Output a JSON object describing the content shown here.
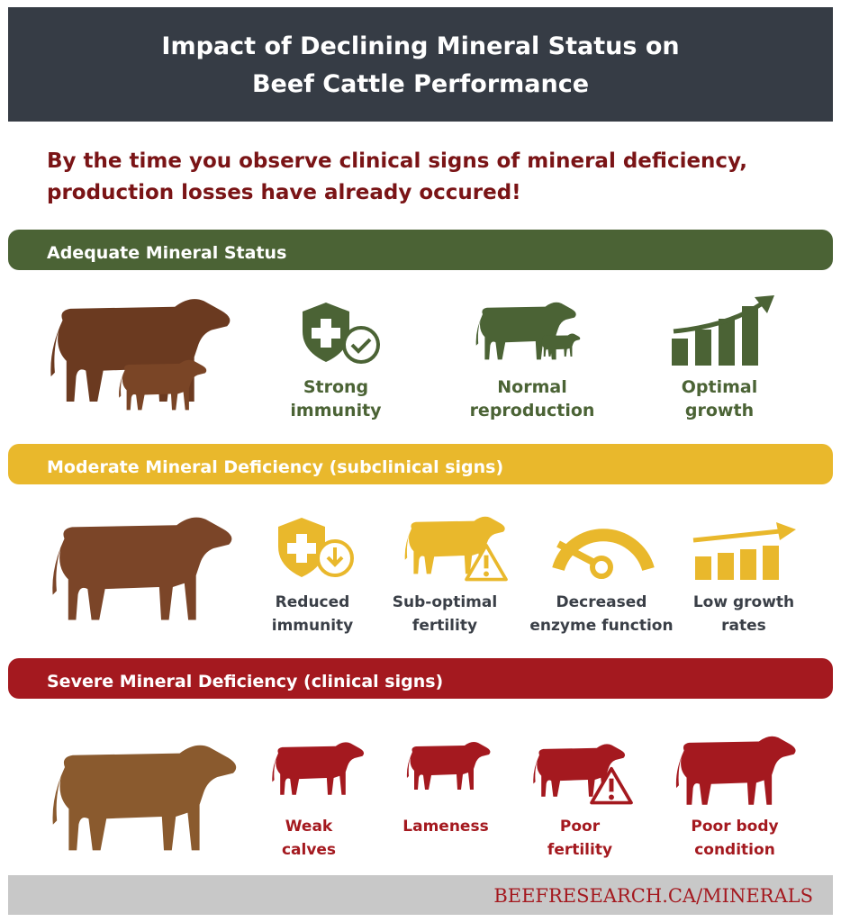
{
  "header": {
    "title_lines": [
      "Impact of Declining Mineral Status on",
      "Beef Cattle Performance"
    ]
  },
  "subtitle_lines": [
    "By the time you observe clinical signs of mineral deficiency,",
    "production losses have already occured!"
  ],
  "sections": [
    {
      "title": "Adequate Mineral Status",
      "items": [
        {
          "lines": [
            "Strong",
            "immunity"
          ]
        },
        {
          "lines": [
            "Normal",
            "reproduction"
          ]
        },
        {
          "lines": [
            "Optimal",
            "growth"
          ]
        }
      ]
    },
    {
      "title": "Moderate Mineral Deficiency (subclinical signs)",
      "items": [
        {
          "lines": [
            "Reduced",
            "immunity"
          ]
        },
        {
          "lines": [
            "Sub-optimal",
            "fertility"
          ]
        },
        {
          "lines": [
            "Decreased",
            "enzyme function"
          ]
        },
        {
          "lines": [
            "Low growth",
            "rates"
          ]
        }
      ]
    },
    {
      "title": "Severe Mineral Deficiency (clinical signs)",
      "items": [
        {
          "lines": [
            "Weak",
            "calves"
          ]
        },
        {
          "lines": [
            "Lameness"
          ]
        },
        {
          "lines": [
            "Poor",
            "fertility"
          ]
        },
        {
          "lines": [
            "Poor body",
            "condition"
          ]
        }
      ]
    }
  ],
  "footer": {
    "text": "BEEFRESEARCH.CA/MINERALS"
  }
}
